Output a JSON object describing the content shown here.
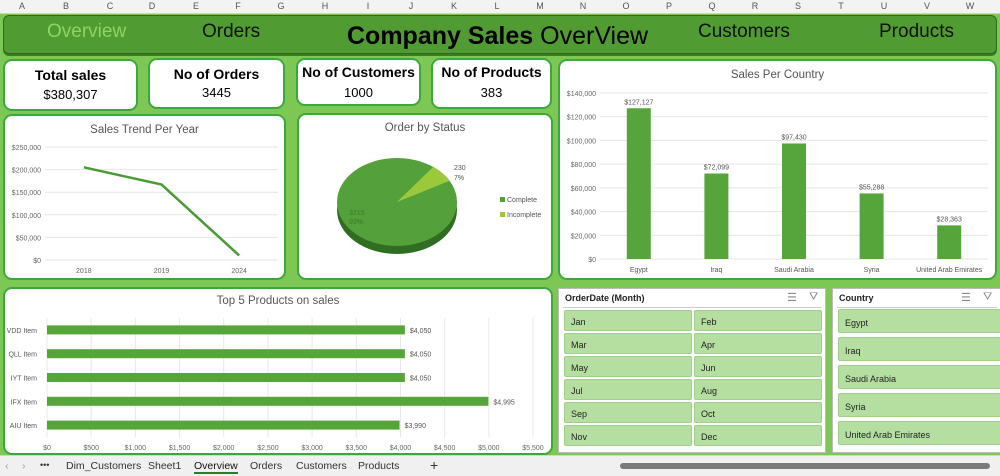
{
  "columns": [
    "A",
    "B",
    "C",
    "D",
    "E",
    "F",
    "G",
    "H",
    "I",
    "J",
    "K",
    "L",
    "M",
    "N",
    "O",
    "P",
    "Q",
    "R",
    "S",
    "T",
    "U",
    "V",
    "W"
  ],
  "header": {
    "nav": [
      "Overview",
      "Orders",
      "Customers",
      "Products"
    ],
    "title_bold": "Company Sales",
    "title_rest": "OverView",
    "active": "Overview"
  },
  "kpis": [
    {
      "label": "Total sales",
      "value": "$380,307"
    },
    {
      "label": "No of Orders",
      "value": "3445"
    },
    {
      "label": "No of Customers",
      "value": "1000"
    },
    {
      "label": "No of Products",
      "value": "383"
    }
  ],
  "colors": {
    "accent": "#519b33",
    "bar": "#56a53a",
    "light": "#9cc93a",
    "slicer": "#b5dfa0",
    "background": "#7dc855"
  },
  "chart_data": [
    {
      "type": "line",
      "title": "Sales Trend Per Year",
      "categories": [
        "2018",
        "2019",
        "2024"
      ],
      "values": [
        205000,
        167000,
        10000
      ],
      "ylim": [
        0,
        250000
      ],
      "yticks": [
        "$0",
        "$50,000",
        "$100,000",
        "$150,000",
        "$200,000",
        "$250,000"
      ],
      "grid": true
    },
    {
      "type": "pie",
      "title": "Order by Status",
      "slices": [
        {
          "name": "Complete",
          "value": 3215,
          "label": "3215",
          "pct": "93%"
        },
        {
          "name": "Incomplete",
          "value": 230,
          "label": "230",
          "pct": "7%"
        }
      ],
      "legend": "right"
    },
    {
      "type": "bar",
      "title": "Sales Per Country",
      "categories": [
        "Egypt",
        "Iraq",
        "Saudi Arabia",
        "Syria",
        "United Arab Emirates"
      ],
      "values": [
        127127,
        72099,
        97430,
        55288,
        28363
      ],
      "labels": [
        "$127,127",
        "$72,099",
        "$97,430",
        "$55,288",
        "$28,363"
      ],
      "ylim": [
        0,
        140000
      ],
      "yticks": [
        "$0",
        "$20,000",
        "$40,000",
        "$60,000",
        "$80,000",
        "$100,000",
        "$120,000",
        "$140,000"
      ],
      "grid": true
    },
    {
      "type": "bar",
      "orientation": "horizontal",
      "title": "Top 5 Products on sales",
      "categories": [
        "VDD Item",
        "QLL Item",
        "IYT Item",
        "IFX Item",
        "AIU Item"
      ],
      "values": [
        4050,
        4050,
        4050,
        4995,
        3990
      ],
      "labels": [
        "$4,050",
        "$4,050",
        "$4,050",
        "$4,995",
        "$3,990"
      ],
      "xlim": [
        0,
        5500
      ],
      "xticks": [
        "$0",
        "$500",
        "$1,000",
        "$1,500",
        "$2,000",
        "$2,500",
        "$3,000",
        "$3,500",
        "$4,000",
        "$4,500",
        "$5,000",
        "$5,500"
      ],
      "grid": true
    }
  ],
  "slicers": {
    "month": {
      "title": "OrderDate (Month)",
      "items": [
        "Jan",
        "Feb",
        "Mar",
        "Apr",
        "May",
        "Jun",
        "Jul",
        "Aug",
        "Sep",
        "Oct",
        "Nov",
        "Dec"
      ]
    },
    "country": {
      "title": "Country",
      "items": [
        "Egypt",
        "Iraq",
        "Saudi Arabia",
        "Syria",
        "United Arab Emirates"
      ]
    }
  },
  "sheet_tabs": {
    "items": [
      "Dim_Customers",
      "Sheet1",
      "Overview",
      "Orders",
      "Customers",
      "Products"
    ],
    "active": "Overview",
    "more": "•••",
    "add": "+"
  }
}
